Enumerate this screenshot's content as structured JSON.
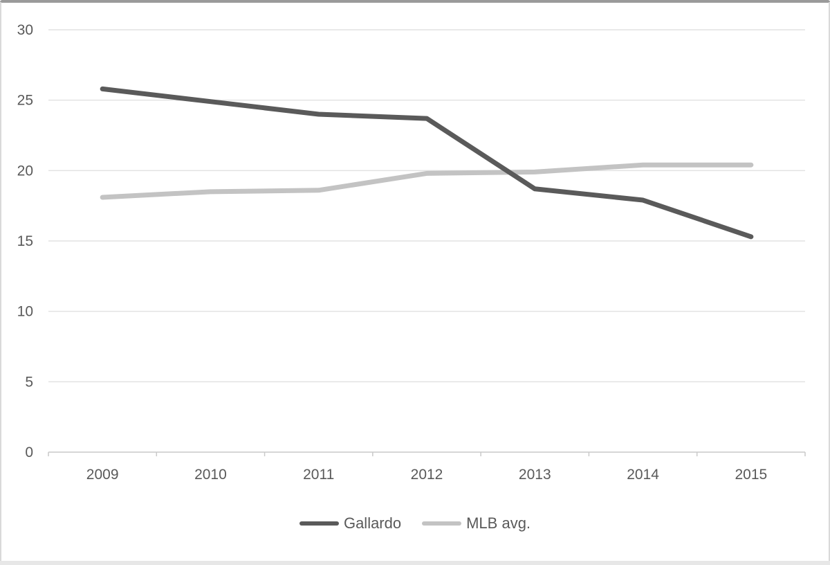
{
  "frame": {
    "background": "#ffffff",
    "top_border_color": "#9a9a9a",
    "side_border_color": "#d9d9d9",
    "bottom_strip_color": "#e7e7e7"
  },
  "chart_data": {
    "type": "line",
    "title": "",
    "xlabel": "",
    "ylabel": "",
    "categories": [
      "2009",
      "2010",
      "2011",
      "2012",
      "2013",
      "2014",
      "2015"
    ],
    "series": [
      {
        "name": "Gallardo",
        "color": "#5a5a5a",
        "values": [
          25.8,
          24.9,
          24.0,
          23.7,
          18.7,
          17.9,
          15.3
        ]
      },
      {
        "name": "MLB avg.",
        "color": "#c3c3c3",
        "values": [
          18.1,
          18.5,
          18.6,
          19.8,
          19.9,
          20.4,
          20.4
        ]
      }
    ],
    "ylim": [
      0,
      30
    ],
    "yticks": [
      0,
      5,
      10,
      15,
      20,
      25,
      30
    ],
    "grid": true,
    "legend_position": "bottom",
    "style": {
      "axis_text_color": "#595959",
      "gridline_color": "#e2e2e2",
      "axis_line_color": "#c9c9c9",
      "tick_font_size": 21,
      "line_width": 7
    }
  }
}
